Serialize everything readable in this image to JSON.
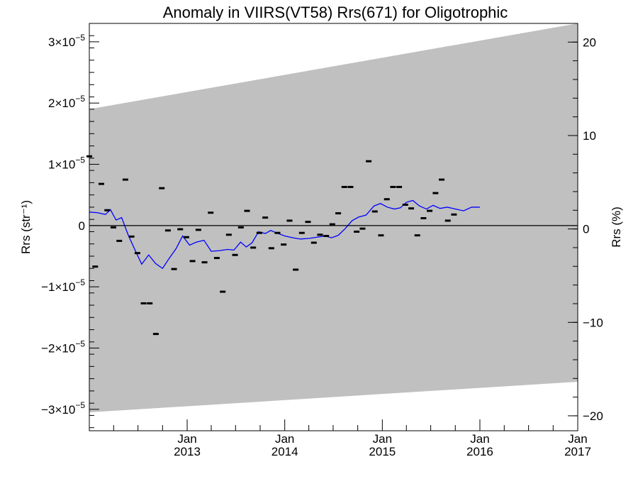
{
  "chart_data": {
    "type": "scatter",
    "title": "Anomaly in VIIRS(VT58) Rrs(671) for Oligotrophic",
    "ylabel_left": "Rrs (str⁻¹)",
    "ylabel_right": "Rrs (%)",
    "ylim_left": [
      -3.35e-05,
      3.3e-05
    ],
    "ylim_right": [
      -21.6,
      22
    ],
    "xlim": [
      "2012-01-01",
      "2017-01-01"
    ],
    "x_ticks": [
      {
        "month": "Jan",
        "year": "2013",
        "date": "2013-01-01"
      },
      {
        "month": "Jan",
        "year": "2014",
        "date": "2014-01-01"
      },
      {
        "month": "Jan",
        "year": "2015",
        "date": "2015-01-01"
      },
      {
        "month": "Jan",
        "year": "2016",
        "date": "2016-01-01"
      },
      {
        "month": "Jan",
        "year": "2017",
        "date": "2017-01-01"
      }
    ],
    "y_ticks_left": [
      {
        "value": 3e-05,
        "mant": "3×10",
        "exp": "−5"
      },
      {
        "value": 2e-05,
        "mant": "2×10",
        "exp": "−5"
      },
      {
        "value": 1e-05,
        "mant": "1×10",
        "exp": "−5"
      },
      {
        "value": 0,
        "mant": "0",
        "exp": ""
      },
      {
        "value": -1e-05,
        "mant": "−1×10",
        "exp": "−5"
      },
      {
        "value": -2e-05,
        "mant": "−2×10",
        "exp": "−5"
      },
      {
        "value": -3e-05,
        "mant": "−3×10",
        "exp": "−5"
      }
    ],
    "y_ticks_right": [
      {
        "value": 20,
        "label": "20"
      },
      {
        "value": 10,
        "label": "10"
      },
      {
        "value": 0,
        "label": "0"
      },
      {
        "value": -10,
        "label": "−10"
      },
      {
        "value": -20,
        "label": "−20"
      }
    ],
    "zero_line": true,
    "band": {
      "upper": [
        [
          "2012-01-01",
          1.9e-05
        ],
        [
          "2017-01-01",
          3.3e-05
        ]
      ],
      "lower": [
        [
          "2012-01-01",
          -3.05e-05
        ],
        [
          "2017-01-01",
          -2.55e-05
        ]
      ],
      "color": "#c0c0c0"
    },
    "series": [
      {
        "kind": "points",
        "color": "#000000",
        "points": [
          [
            "2012-01-01",
            1.13e-05
          ],
          [
            "2012-01-23",
            -6.7e-06
          ],
          [
            "2012-02-15",
            6.8e-06
          ],
          [
            "2012-03-08",
            2.5e-06
          ],
          [
            "2012-03-31",
            -3e-07
          ],
          [
            "2012-04-22",
            -2.5e-06
          ],
          [
            "2012-05-15",
            7.5e-06
          ],
          [
            "2012-06-07",
            -1.8e-06
          ],
          [
            "2012-06-29",
            -4.5e-06
          ],
          [
            "2012-07-22",
            -1.27e-05
          ],
          [
            "2012-08-14",
            -1.27e-05
          ],
          [
            "2012-09-06",
            -1.77e-05
          ],
          [
            "2012-09-28",
            6.1e-06
          ],
          [
            "2012-10-21",
            -8e-07
          ],
          [
            "2012-11-13",
            -7.1e-06
          ],
          [
            "2012-12-06",
            -6e-07
          ],
          [
            "2012-12-29",
            -1.9e-06
          ],
          [
            "2013-01-21",
            -5.8e-06
          ],
          [
            "2013-02-12",
            -7e-07
          ],
          [
            "2013-03-07",
            -6e-06
          ],
          [
            "2013-03-30",
            2.1e-06
          ],
          [
            "2013-04-22",
            -5.3e-06
          ],
          [
            "2013-05-14",
            -1.08e-05
          ],
          [
            "2013-06-06",
            -1.5e-06
          ],
          [
            "2013-06-29",
            -4.8e-06
          ],
          [
            "2013-07-21",
            -3e-07
          ],
          [
            "2013-08-13",
            2.4e-06
          ],
          [
            "2013-09-05",
            -3.6e-06
          ],
          [
            "2013-09-28",
            -1.2e-06
          ],
          [
            "2013-10-20",
            1.3e-06
          ],
          [
            "2013-11-12",
            -3.7e-06
          ],
          [
            "2013-12-05",
            -1.2e-06
          ],
          [
            "2013-12-28",
            -3.1e-06
          ],
          [
            "2014-01-19",
            8e-07
          ],
          [
            "2014-02-11",
            -7.2e-06
          ],
          [
            "2014-03-06",
            -1.2e-06
          ],
          [
            "2014-03-29",
            6e-07
          ],
          [
            "2014-04-20",
            -2.8e-06
          ],
          [
            "2014-05-13",
            -1.5e-06
          ],
          [
            "2014-06-05",
            -1.7e-06
          ],
          [
            "2014-06-28",
            2e-07
          ],
          [
            "2014-07-20",
            2e-06
          ],
          [
            "2014-08-12",
            6.3e-06
          ],
          [
            "2014-09-04",
            6.3e-06
          ],
          [
            "2014-09-27",
            -1e-06
          ],
          [
            "2014-10-19",
            -5e-07
          ],
          [
            "2014-11-11",
            1.05e-05
          ],
          [
            "2014-12-04",
            2.3e-06
          ],
          [
            "2014-12-27",
            -1.6e-06
          ],
          [
            "2015-01-18",
            4.3e-06
          ],
          [
            "2015-02-10",
            6.3e-06
          ],
          [
            "2015-03-05",
            6.3e-06
          ],
          [
            "2015-03-28",
            3.4e-06
          ],
          [
            "2015-04-19",
            2.8e-06
          ],
          [
            "2015-05-12",
            -1.6e-06
          ],
          [
            "2015-06-04",
            1.2e-06
          ],
          [
            "2015-06-27",
            2.4e-06
          ],
          [
            "2015-07-19",
            5.3e-06
          ],
          [
            "2015-08-11",
            7.5e-06
          ],
          [
            "2015-09-03",
            8e-07
          ],
          [
            "2015-09-26",
            1.8e-06
          ]
        ]
      },
      {
        "kind": "line",
        "color": "#0000ff",
        "points": [
          [
            "2012-01-01",
            2.2e-06
          ],
          [
            "2012-02-01",
            2.1e-06
          ],
          [
            "2012-03-01",
            1.8e-06
          ],
          [
            "2012-03-20",
            2.6e-06
          ],
          [
            "2012-04-10",
            9e-07
          ],
          [
            "2012-05-01",
            1.3e-06
          ],
          [
            "2012-05-25",
            -1.5e-06
          ],
          [
            "2012-06-20",
            -4e-06
          ],
          [
            "2012-07-15",
            -6.3e-06
          ],
          [
            "2012-08-10",
            -4.8e-06
          ],
          [
            "2012-09-05",
            -6.2e-06
          ],
          [
            "2012-10-01",
            -7e-06
          ],
          [
            "2012-10-25",
            -5.4e-06
          ],
          [
            "2012-11-20",
            -3.8e-06
          ],
          [
            "2012-12-15",
            -1.7e-06
          ],
          [
            "2013-01-10",
            -3.2e-06
          ],
          [
            "2013-02-05",
            -2.7e-06
          ],
          [
            "2013-03-05",
            -2.4e-06
          ],
          [
            "2013-04-01",
            -4.2e-06
          ],
          [
            "2013-05-01",
            -4.1e-06
          ],
          [
            "2013-06-01",
            -3.9e-06
          ],
          [
            "2013-06-25",
            -4e-06
          ],
          [
            "2013-07-20",
            -2.7e-06
          ],
          [
            "2013-08-10",
            -3.5e-06
          ],
          [
            "2013-09-01",
            -2.8e-06
          ],
          [
            "2013-09-25",
            -1e-06
          ],
          [
            "2013-10-20",
            -1.3e-06
          ],
          [
            "2013-11-10",
            -8e-07
          ],
          [
            "2013-12-01",
            -1.2e-06
          ],
          [
            "2014-01-01",
            -1.7e-06
          ],
          [
            "2014-02-01",
            -2e-06
          ],
          [
            "2014-03-01",
            -2.2e-06
          ],
          [
            "2014-04-01",
            -2.1e-06
          ],
          [
            "2014-05-01",
            -1.9e-06
          ],
          [
            "2014-06-01",
            -1.7e-06
          ],
          [
            "2014-06-25",
            -2e-06
          ],
          [
            "2014-07-20",
            -1.6e-06
          ],
          [
            "2014-08-15",
            -5e-07
          ],
          [
            "2014-09-10",
            8e-07
          ],
          [
            "2014-10-05",
            1.4e-06
          ],
          [
            "2014-11-01",
            1.7e-06
          ],
          [
            "2014-12-01",
            3.2e-06
          ],
          [
            "2014-12-25",
            3.6e-06
          ],
          [
            "2015-01-20",
            3e-06
          ],
          [
            "2015-02-15",
            2.7e-06
          ],
          [
            "2015-03-10",
            2.9e-06
          ],
          [
            "2015-04-01",
            3.8e-06
          ],
          [
            "2015-04-25",
            4.1e-06
          ],
          [
            "2015-05-20",
            3.2e-06
          ],
          [
            "2015-06-15",
            2.7e-06
          ],
          [
            "2015-07-10",
            3.3e-06
          ],
          [
            "2015-08-05",
            2.8e-06
          ],
          [
            "2015-09-01",
            3e-06
          ],
          [
            "2015-10-01",
            2.7e-06
          ],
          [
            "2015-11-01",
            2.4e-06
          ],
          [
            "2015-12-01",
            3e-06
          ],
          [
            "2016-01-01",
            3e-06
          ]
        ]
      }
    ]
  }
}
